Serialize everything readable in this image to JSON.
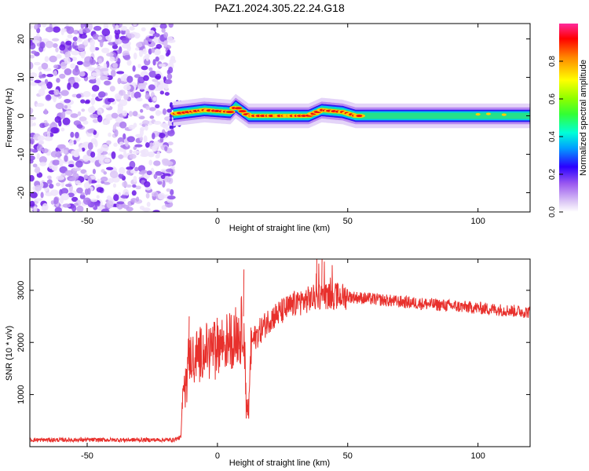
{
  "title": "PAZ1.2024.305.22.24.G18",
  "chart_data": [
    {
      "type": "heatmap",
      "xlabel": "Height of straight line (km)",
      "ylabel": "Frequency (Hz)",
      "xlim": [
        -72,
        120
      ],
      "ylim": [
        -25,
        24
      ],
      "xticks": [
        -50,
        0,
        50,
        100
      ],
      "yticks": [
        -20,
        -10,
        0,
        10,
        20
      ],
      "noise_region_x": [
        -72,
        -17
      ],
      "signal_band_center_hz": [
        {
          "x": -17,
          "f": 0.5
        },
        {
          "x": -5,
          "f": 1.5
        },
        {
          "x": 5,
          "f": 1.0
        },
        {
          "x": 7,
          "f": 2.5
        },
        {
          "x": 12,
          "f": 0.0
        },
        {
          "x": 25,
          "f": 0.0
        },
        {
          "x": 35,
          "f": 0.0
        },
        {
          "x": 40,
          "f": 1.5
        },
        {
          "x": 48,
          "f": 1.0
        },
        {
          "x": 53,
          "f": 0.0
        },
        {
          "x": 120,
          "f": 0.0
        }
      ],
      "colorbar": {
        "label": "Normalized spectral amplitude",
        "ticks": [
          0.0,
          0.2,
          0.4,
          0.6,
          0.8
        ],
        "range": [
          0,
          1
        ],
        "colormap": "rainbow-white-low"
      }
    },
    {
      "type": "line",
      "xlabel": "Height of straight line (km)",
      "ylabel": "SNR (10 * v/v)",
      "xlim": [
        -72,
        120
      ],
      "ylim": [
        0,
        3600
      ],
      "xticks": [
        -50,
        0,
        50,
        100
      ],
      "yticks": [
        1000,
        2000,
        3000
      ],
      "series": [
        {
          "color": "#e8302c",
          "envelope": [
            {
              "x": -72,
              "y": 130
            },
            {
              "x": -17,
              "y": 130
            },
            {
              "x": -14,
              "y": 180
            },
            {
              "x": -13,
              "y": 1300
            },
            {
              "x": -11,
              "y": 1700
            },
            {
              "x": -5,
              "y": 1850
            },
            {
              "x": 0,
              "y": 1950
            },
            {
              "x": 5,
              "y": 2050
            },
            {
              "x": 9,
              "y": 2200
            },
            {
              "x": 10,
              "y": 2500
            },
            {
              "x": 11,
              "y": 900
            },
            {
              "x": 12,
              "y": 700
            },
            {
              "x": 13,
              "y": 2000
            },
            {
              "x": 20,
              "y": 2450
            },
            {
              "x": 30,
              "y": 2750
            },
            {
              "x": 40,
              "y": 2900
            },
            {
              "x": 50,
              "y": 2880
            },
            {
              "x": 70,
              "y": 2780
            },
            {
              "x": 90,
              "y": 2700
            },
            {
              "x": 120,
              "y": 2580
            }
          ],
          "spikes": [
            {
              "x": -11,
              "y": 2500
            },
            {
              "x": 10,
              "y": 3400
            },
            {
              "x": 38,
              "y": 3600
            },
            {
              "x": 40,
              "y": 3600
            },
            {
              "x": 11.5,
              "y": 600
            }
          ]
        }
      ]
    }
  ]
}
